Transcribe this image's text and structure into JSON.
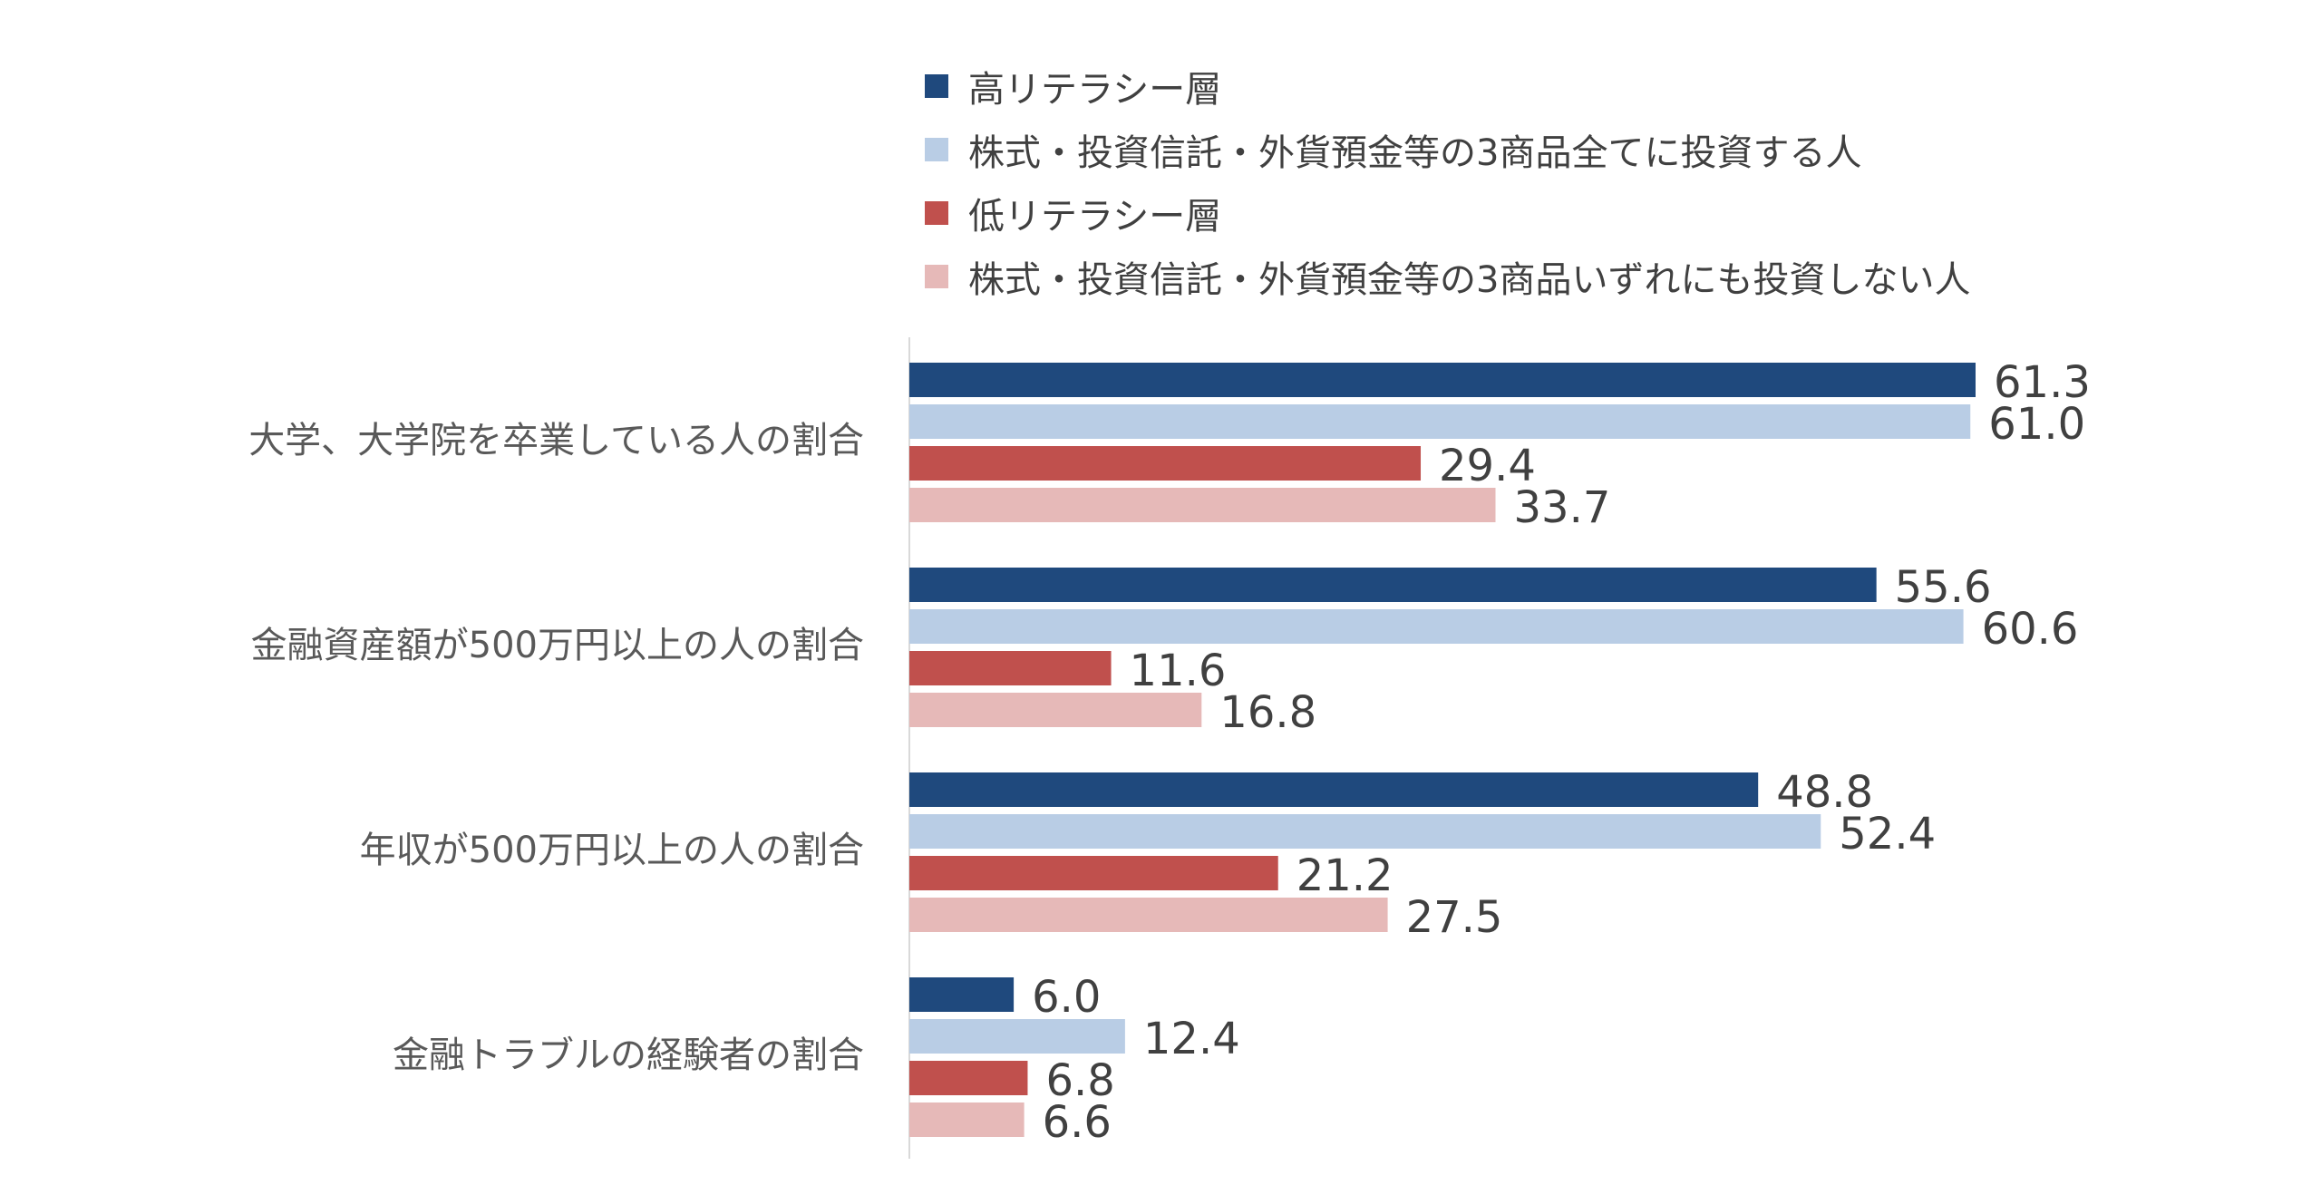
{
  "chart_data": {
    "type": "bar",
    "orientation": "horizontal",
    "categories": [
      "大学、大学院を卒業している人の割合",
      "金融資産額が500万円以上の人の割合",
      "年収が500万円以上の人の割合",
      "金融トラブルの経験者の割合"
    ],
    "series": [
      {
        "name": "高リテラシー層",
        "color": "#1f497d",
        "values": [
          61.3,
          55.6,
          48.8,
          6.0
        ]
      },
      {
        "name": "株式・投資信託・外貨預金等の3商品全てに投資する人",
        "color": "#b9cde5",
        "values": [
          61.0,
          60.6,
          52.4,
          12.4
        ]
      },
      {
        "name": "低リテラシー層",
        "color": "#c0504d",
        "values": [
          29.4,
          11.6,
          21.2,
          6.8
        ]
      },
      {
        "name": "株式・投資信託・外貨預金等の3商品いずれにも投資しない人",
        "color": "#e6b9b8",
        "values": [
          33.7,
          16.8,
          27.5,
          6.6
        ]
      }
    ],
    "data_labels": [
      [
        "61.3",
        "55.6",
        "48.8",
        "6.0"
      ],
      [
        "61.0",
        "60.6",
        "52.4",
        "12.4"
      ],
      [
        "29.4",
        "11.6",
        "21.2",
        "6.8"
      ],
      [
        "33.7",
        "16.8",
        "27.5",
        "6.6"
      ]
    ],
    "xlim": [
      0,
      65
    ],
    "title": "",
    "xlabel": "",
    "ylabel": "",
    "grid": false,
    "legend_position": "top"
  }
}
